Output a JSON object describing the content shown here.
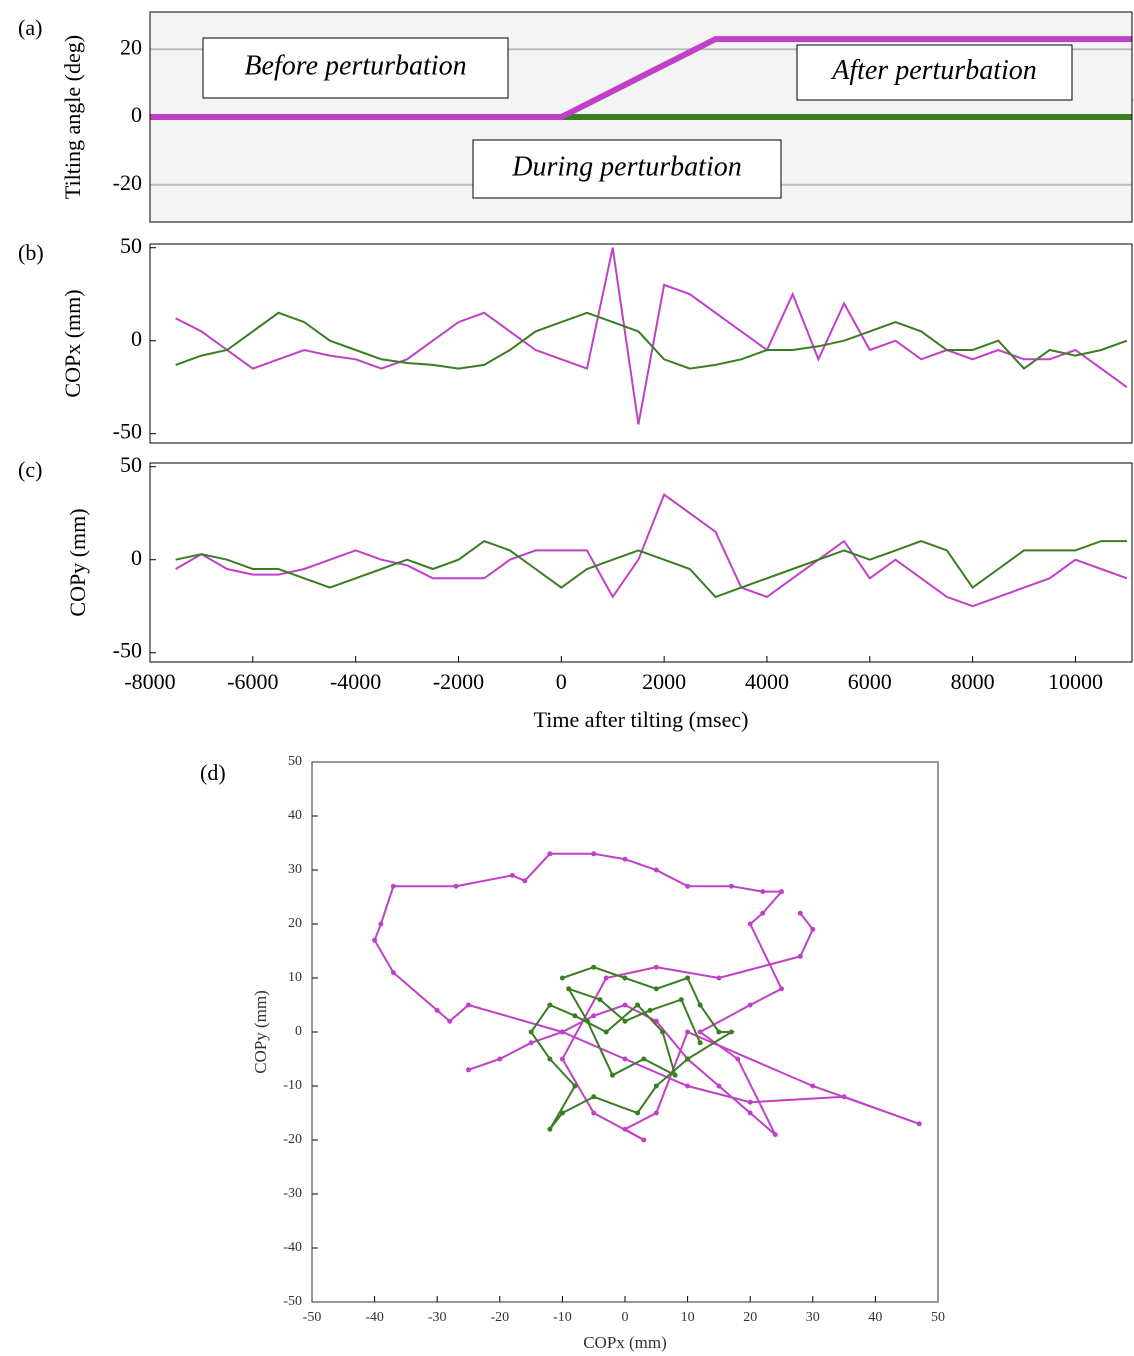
{
  "chart_data": [
    {
      "type": "line",
      "panel_label": "(a)",
      "ylabel": "Tilting angle (deg)",
      "xlim": [
        -8000,
        11100
      ],
      "ylim": [
        -31,
        31
      ],
      "yticks": [
        20,
        0,
        -20
      ],
      "grid": true,
      "annotations": [
        "Before perturbation",
        "After perturbation",
        "During perturbation"
      ],
      "series": [
        {
          "color": "#3a7d22",
          "x": [
            -8000,
            11100
          ],
          "values": [
            0,
            0
          ]
        },
        {
          "color": "#c040c8",
          "x": [
            -8000,
            0,
            3000,
            11100
          ],
          "values": [
            0,
            0,
            23,
            23
          ]
        }
      ]
    },
    {
      "type": "line",
      "panel_label": "(b)",
      "ylabel": "COPx (mm)",
      "xlim": [
        -8000,
        11100
      ],
      "ylim": [
        -55,
        52
      ],
      "yticks": [
        50,
        0,
        -50
      ],
      "x": [
        -7500,
        -7000,
        -6500,
        -6000,
        -5500,
        -5000,
        -4500,
        -4000,
        -3500,
        -3000,
        -2500,
        -2000,
        -1500,
        -1000,
        -500,
        0,
        500,
        1000,
        1500,
        2000,
        2500,
        3000,
        3500,
        4000,
        4500,
        5000,
        5500,
        6000,
        6500,
        7000,
        7500,
        8000,
        8500,
        9000,
        9500,
        10000,
        10500,
        11000
      ],
      "series": [
        {
          "color": "#c040c8",
          "values": [
            12,
            5,
            -5,
            -15,
            -10,
            -5,
            -8,
            -10,
            -15,
            -10,
            0,
            10,
            15,
            5,
            -5,
            -10,
            -15,
            50,
            -45,
            30,
            25,
            15,
            5,
            -5,
            25,
            -10,
            20,
            -5,
            0,
            -10,
            -5,
            -10,
            -5,
            -10,
            -10,
            -5,
            -15,
            -25
          ]
        },
        {
          "color": "#3a7d22",
          "values": [
            -13,
            -8,
            -5,
            5,
            15,
            10,
            0,
            -5,
            -10,
            -12,
            -13,
            -15,
            -13,
            -5,
            5,
            10,
            15,
            10,
            5,
            -10,
            -15,
            -13,
            -10,
            -5,
            -5,
            -3,
            0,
            5,
            10,
            5,
            -5,
            -5,
            0,
            -15,
            -5,
            -8,
            -5,
            0
          ]
        }
      ]
    },
    {
      "type": "line",
      "panel_label": "(c)",
      "ylabel": "COPy (mm)",
      "xlabel": "Time after tilting (msec)",
      "xlim": [
        -8000,
        11100
      ],
      "ylim": [
        -55,
        52
      ],
      "yticks": [
        50,
        0,
        -50
      ],
      "xticks": [
        -8000,
        -6000,
        -4000,
        -2000,
        0,
        2000,
        4000,
        6000,
        8000,
        10000
      ],
      "x": [
        -7500,
        -7000,
        -6500,
        -6000,
        -5500,
        -5000,
        -4500,
        -4000,
        -3500,
        -3000,
        -2500,
        -2000,
        -1500,
        -1000,
        -500,
        0,
        500,
        1000,
        1500,
        2000,
        2500,
        3000,
        3500,
        4000,
        4500,
        5000,
        5500,
        6000,
        6500,
        7000,
        7500,
        8000,
        8500,
        9000,
        9500,
        10000,
        10500,
        11000
      ],
      "series": [
        {
          "color": "#c040c8",
          "values": [
            -5,
            3,
            -5,
            -8,
            -8,
            -5,
            0,
            5,
            0,
            -3,
            -10,
            -10,
            -10,
            0,
            5,
            5,
            5,
            -20,
            0,
            35,
            25,
            15,
            -15,
            -20,
            -10,
            0,
            10,
            -10,
            0,
            -10,
            -20,
            -25,
            -20,
            -15,
            -10,
            0,
            -5,
            -10
          ]
        },
        {
          "color": "#3a7d22",
          "values": [
            0,
            3,
            0,
            -5,
            -5,
            -10,
            -15,
            -10,
            -5,
            0,
            -5,
            0,
            10,
            5,
            -5,
            -15,
            -5,
            0,
            5,
            0,
            -5,
            -20,
            -15,
            -10,
            -5,
            0,
            5,
            0,
            5,
            10,
            5,
            -15,
            -5,
            5,
            5,
            5,
            10,
            10
          ]
        }
      ]
    },
    {
      "type": "scatter-line",
      "panel_label": "(d)",
      "xlabel": "COPx (mm)",
      "ylabel": "COPy (mm)",
      "xlim": [
        -50,
        50
      ],
      "ylim": [
        -50,
        50
      ],
      "xticks": [
        -50,
        -40,
        -30,
        -20,
        -10,
        0,
        10,
        20,
        30,
        40,
        50
      ],
      "yticks": [
        -50,
        -40,
        -30,
        -20,
        -10,
        0,
        10,
        20,
        30,
        40,
        50
      ],
      "series": [
        {
          "color": "#c040c8",
          "x": [
            -25,
            -20,
            -15,
            -10,
            -5,
            0,
            5,
            10,
            15,
            20,
            24,
            18,
            12,
            20,
            25,
            20,
            22,
            25,
            22,
            17,
            10,
            5,
            0,
            -5,
            -12,
            -16,
            -18,
            -27,
            -37,
            -39,
            -40,
            -37,
            -30,
            -28,
            -25,
            -10,
            0,
            10,
            20,
            35,
            47,
            30,
            10,
            5,
            0,
            3,
            -5,
            -10,
            -3,
            5,
            15,
            28,
            30,
            28
          ],
          "values": [
            -7,
            -5,
            -2,
            0,
            3,
            5,
            2,
            -5,
            -10,
            -15,
            -19,
            -5,
            0,
            5,
            8,
            20,
            22,
            26,
            26,
            27,
            27,
            30,
            32,
            33,
            33,
            28,
            29,
            27,
            27,
            20,
            17,
            11,
            4,
            2,
            5,
            0,
            -5,
            -10,
            -13,
            -12,
            -17,
            -10,
            0,
            -15,
            -18,
            -20,
            -15,
            -5,
            10,
            12,
            10,
            14,
            19,
            22
          ]
        },
        {
          "color": "#3a7d22",
          "x": [
            -10,
            -5,
            0,
            5,
            10,
            12,
            15,
            17,
            10,
            5,
            2,
            -5,
            -10,
            -12,
            -8,
            -12,
            -15,
            -12,
            -8,
            -3,
            2,
            6,
            8,
            3,
            -2,
            -6,
            -9,
            -4,
            0,
            4,
            9,
            12
          ],
          "values": [
            10,
            12,
            10,
            8,
            10,
            5,
            0,
            0,
            -5,
            -10,
            -15,
            -12,
            -15,
            -18,
            -10,
            -5,
            0,
            5,
            3,
            0,
            5,
            0,
            -8,
            -5,
            -8,
            2,
            8,
            6,
            2,
            4,
            6,
            -2
          ]
        }
      ]
    }
  ]
}
